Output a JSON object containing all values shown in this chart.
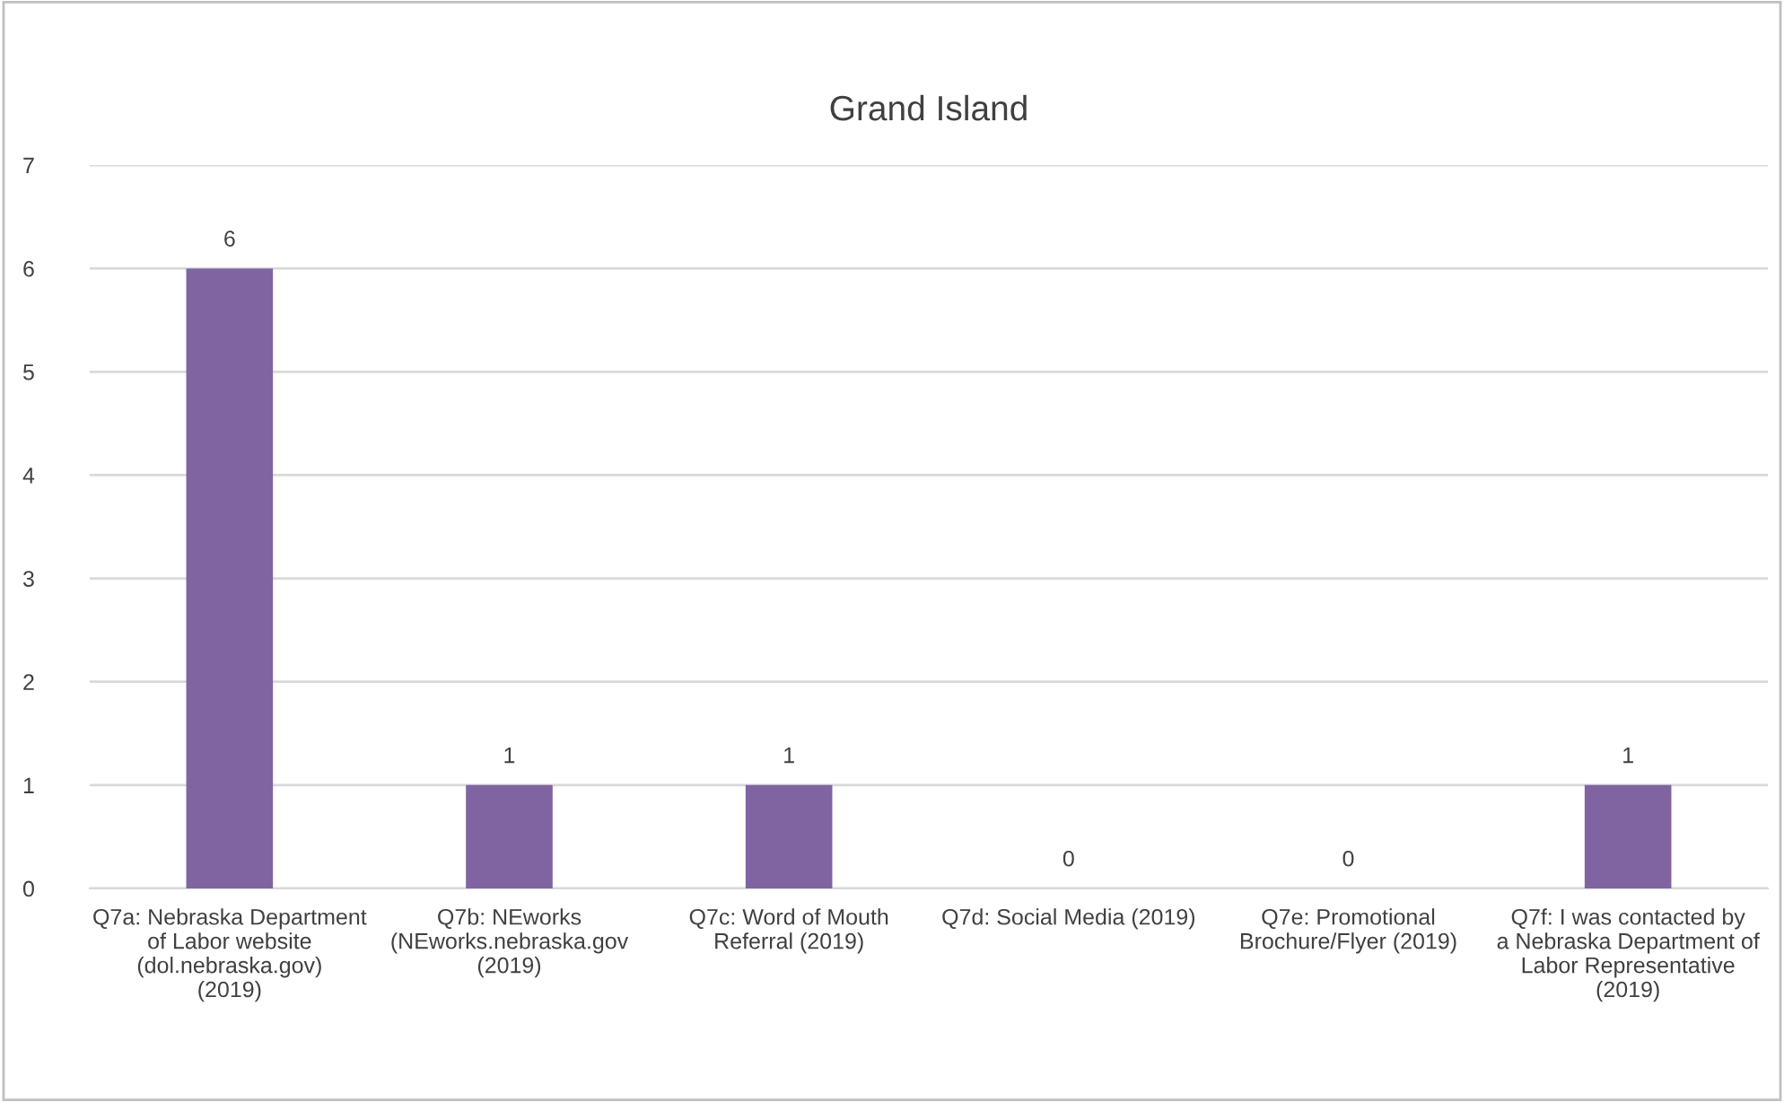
{
  "chart_data": {
    "type": "bar",
    "title": "Grand Island",
    "categories": [
      "Q7a: Nebraska Department of Labor website (dol.nebraska.gov) (2019)",
      "Q7b: NEworks (NEworks.nebraska.gov (2019)",
      "Q7c: Word of Mouth Referral (2019)",
      "Q7d: Social Media (2019)",
      "Q7e: Promotional Brochure/Flyer (2019)",
      "Q7f: I was contacted by a Nebraska Department of Labor Representative (2019)"
    ],
    "values": [
      6,
      1,
      1,
      0,
      0,
      1
    ],
    "color": "#8064a2",
    "ylim": [
      0,
      7
    ],
    "yticks": [
      0,
      1,
      2,
      3,
      4,
      5,
      6,
      7
    ],
    "grid": "y",
    "data_labels": true,
    "legend": false
  }
}
